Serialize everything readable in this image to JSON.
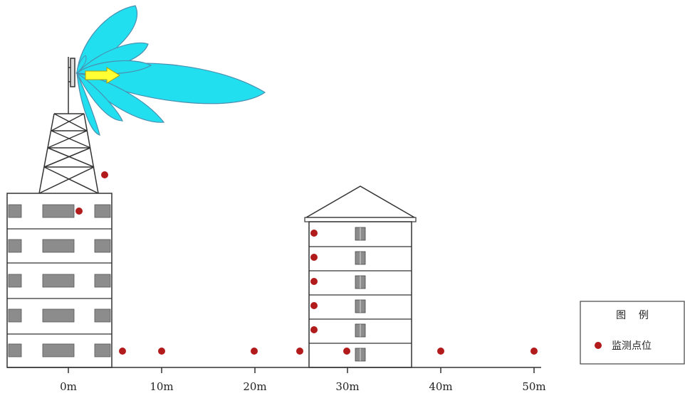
{
  "colors": {
    "lobe": "#22dff0",
    "lobe_stroke": "#4a8fb0",
    "arrow": "#ffff33",
    "window": "#8c8c8c",
    "marker": "#b11b1b",
    "line": "#333333"
  },
  "axis": {
    "ticks": [
      "0m",
      "10m",
      "20m",
      "30m",
      "40m",
      "50m"
    ]
  },
  "legend": {
    "title": "图    例",
    "item_label": "监测点位",
    "marker_icon": "red-dot-icon"
  }
}
